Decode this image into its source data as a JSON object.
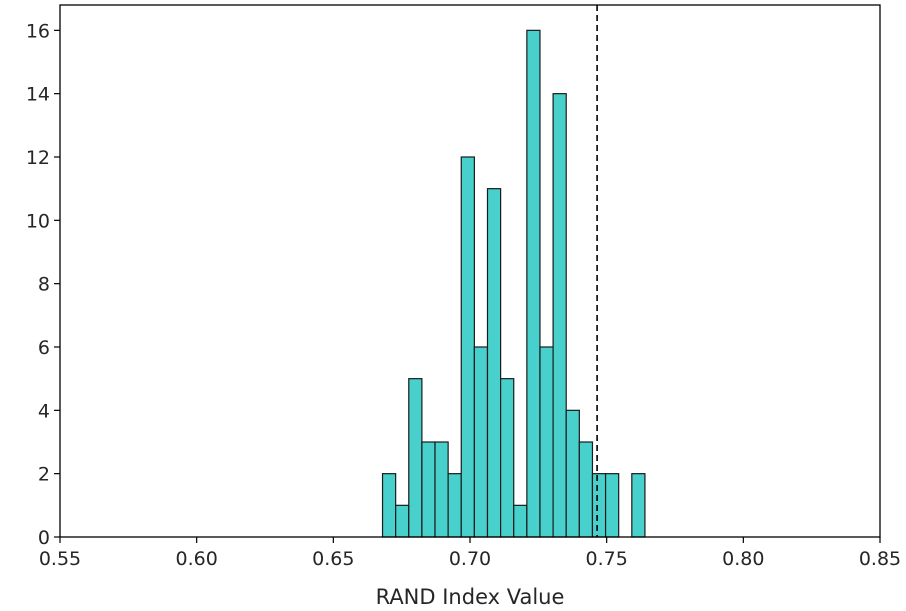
{
  "chart_data": {
    "type": "bar",
    "xlabel": "RAND Index Value",
    "ylabel": "",
    "title": "",
    "xlim": [
      0.55,
      0.85
    ],
    "ylim": [
      0,
      16.8
    ],
    "xticks": [
      0.55,
      0.6,
      0.65,
      0.7,
      0.75,
      0.8,
      0.85
    ],
    "xtick_labels": [
      "0.55",
      "0.60",
      "0.65",
      "0.70",
      "0.75",
      "0.80",
      "0.85"
    ],
    "yticks": [
      0,
      2,
      4,
      6,
      8,
      10,
      12,
      14,
      16
    ],
    "ytick_labels": [
      "0",
      "2",
      "4",
      "6",
      "8",
      "10",
      "12",
      "14",
      "16"
    ],
    "bin_width": 0.0048,
    "bins": [
      {
        "x": 0.668,
        "count": 2
      },
      {
        "x": 0.6728,
        "count": 1
      },
      {
        "x": 0.6776,
        "count": 5
      },
      {
        "x": 0.6824,
        "count": 3
      },
      {
        "x": 0.6872,
        "count": 3
      },
      {
        "x": 0.692,
        "count": 2
      },
      {
        "x": 0.6968,
        "count": 12
      },
      {
        "x": 0.7016,
        "count": 6
      },
      {
        "x": 0.7064,
        "count": 11
      },
      {
        "x": 0.7112,
        "count": 5
      },
      {
        "x": 0.716,
        "count": 1
      },
      {
        "x": 0.7208,
        "count": 16
      },
      {
        "x": 0.7256,
        "count": 6
      },
      {
        "x": 0.7304,
        "count": 14
      },
      {
        "x": 0.7352,
        "count": 4
      },
      {
        "x": 0.74,
        "count": 3
      },
      {
        "x": 0.7448,
        "count": 2
      },
      {
        "x": 0.7496,
        "count": 2
      },
      {
        "x": 0.7544,
        "count": 0
      },
      {
        "x": 0.7592,
        "count": 2
      }
    ],
    "vline": {
      "x": 0.7465,
      "style": "dashed",
      "color": "#000000"
    },
    "bar_color": "#48d1cc",
    "bar_edge_color": "#1a1a1a",
    "grid": false,
    "legend": "none"
  }
}
